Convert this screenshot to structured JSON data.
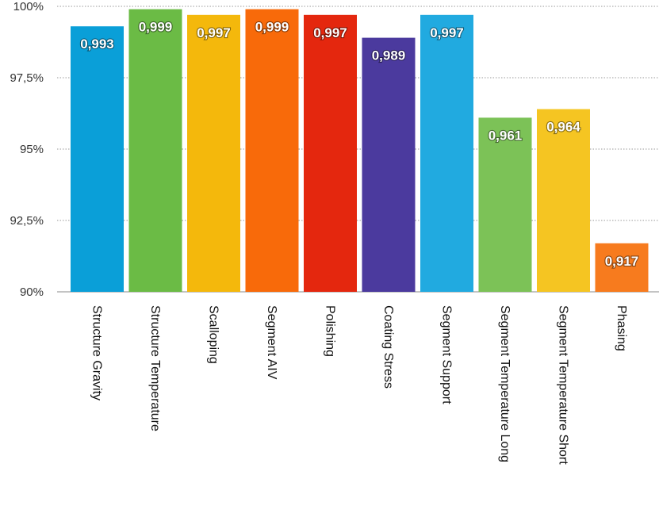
{
  "chart_data": {
    "type": "bar",
    "title": "",
    "xlabel": "",
    "ylabel": "",
    "ylim": [
      0.9,
      1.0
    ],
    "yticks": [
      {
        "value": 0.9,
        "label": "90%"
      },
      {
        "value": 0.925,
        "label": "92,5%"
      },
      {
        "value": 0.95,
        "label": "95%"
      },
      {
        "value": 0.975,
        "label": "97,5%"
      },
      {
        "value": 1.0,
        "label": "100%"
      }
    ],
    "grid": true,
    "categories": [
      "Structure Gravity",
      "Structure Temperature",
      "Scalloping",
      "Segment AIV",
      "Polishing",
      "Coating Stress",
      "Segment Support",
      "Segment Temperature Long",
      "Segment Temperature Short",
      "Phasing"
    ],
    "values": [
      0.993,
      0.999,
      0.997,
      0.999,
      0.997,
      0.989,
      0.997,
      0.961,
      0.964,
      0.917
    ],
    "value_labels": [
      "0,993",
      "0,999",
      "0,997",
      "0,999",
      "0,997",
      "0,989",
      "0,997",
      "0,961",
      "0,964",
      "0,917"
    ],
    "colors": [
      "#0a9fd8",
      "#6bbb45",
      "#f4b80c",
      "#f86a0a",
      "#e4270e",
      "#4b3a9e",
      "#21aae0",
      "#7cc257",
      "#f5c522",
      "#f77b1e"
    ]
  }
}
